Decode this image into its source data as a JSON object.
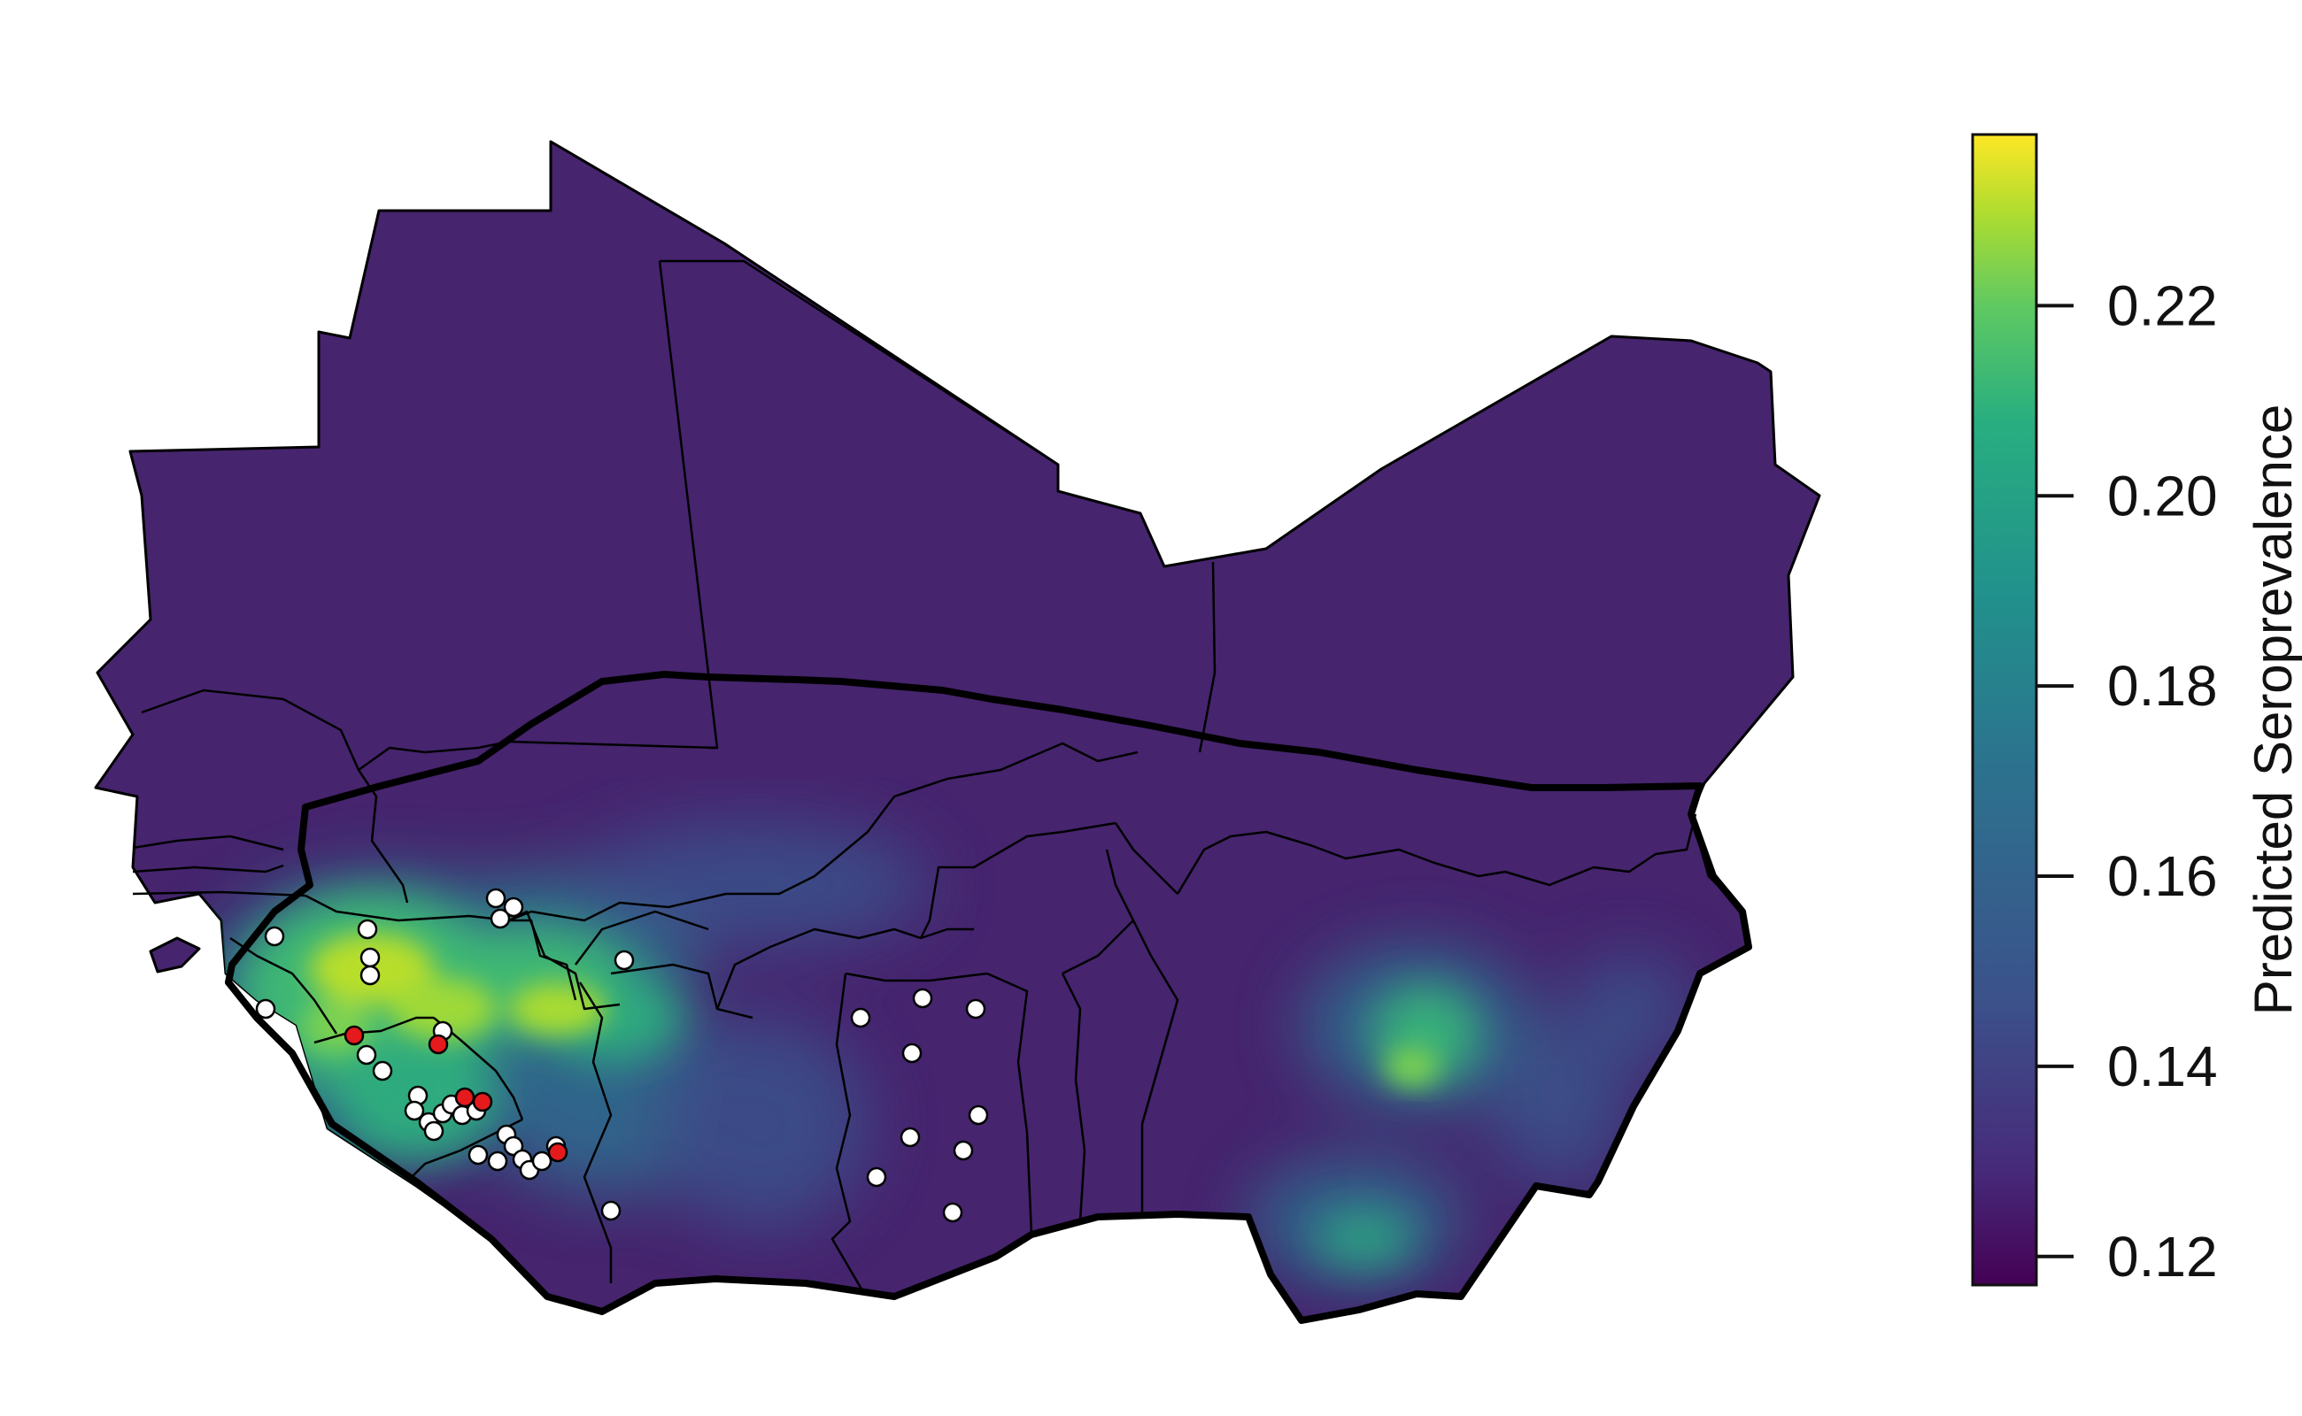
{
  "legend": {
    "title": "Predicted Seroprevalence",
    "ticks": [
      {
        "value": 0.12,
        "label": "0.12"
      },
      {
        "value": 0.14,
        "label": "0.14"
      },
      {
        "value": 0.16,
        "label": "0.16"
      },
      {
        "value": 0.18,
        "label": "0.18"
      },
      {
        "value": 0.2,
        "label": "0.20"
      },
      {
        "value": 0.22,
        "label": "0.22"
      }
    ],
    "range": [
      0.117,
      0.238
    ],
    "colormap": [
      "#440154",
      "#3b528b",
      "#21918c",
      "#5ec962",
      "#fde725"
    ]
  },
  "map": {
    "base_color": "#46246e",
    "hotspot_colors": {
      "low": "#2c7c8e",
      "mid": "#3fbc73",
      "high": "#b8de29"
    },
    "point_colors": {
      "survey_site": "#ffffff",
      "positive_site": "#e41a1c"
    }
  }
}
